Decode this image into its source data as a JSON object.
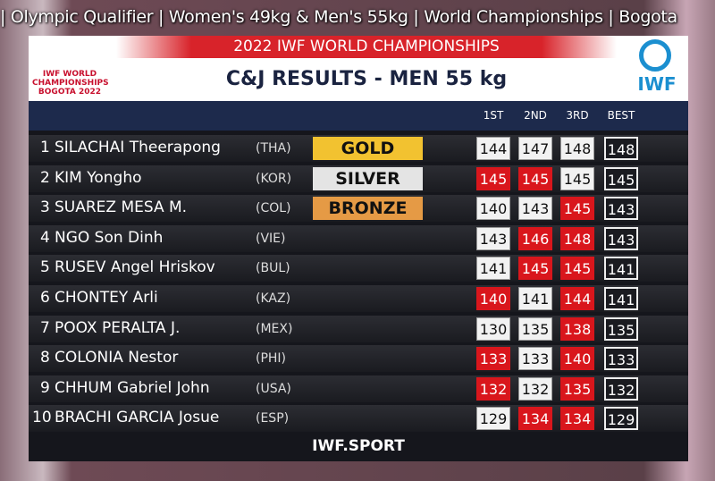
{
  "banner": "| Olympic Qualifier | Women's 49kg & Men's 55kg | World Championships | Bogota",
  "header": {
    "event": "2022 IWF WORLD CHAMPIONSHIPS",
    "title": "C&J RESULTS - MEN 55 kg",
    "logo_left": [
      "IWF WORLD",
      "CHAMPIONSHIPS",
      "BOGOTA 2022"
    ],
    "logo_right": "IWF"
  },
  "columns": [
    "1ST",
    "2ND",
    "3RD",
    "BEST"
  ],
  "table": {
    "rows": [
      {
        "rank": 1,
        "name": "SILACHAI Theerapong",
        "country": "(THA)",
        "medal": {
          "label": "GOLD",
          "color": "#f2c230"
        },
        "attempts": [
          {
            "value": 144,
            "lifted": true
          },
          {
            "value": 147,
            "lifted": true
          },
          {
            "value": 148,
            "lifted": true
          }
        ],
        "best": 148
      },
      {
        "rank": 2,
        "name": "KIM Yongho",
        "country": "(KOR)",
        "medal": {
          "label": "SILVER",
          "color": "#e4e4e4"
        },
        "attempts": [
          {
            "value": 145,
            "lifted": false
          },
          {
            "value": 145,
            "lifted": false
          },
          {
            "value": 145,
            "lifted": true
          }
        ],
        "best": 145
      },
      {
        "rank": 3,
        "name": "SUAREZ MESA M.",
        "country": "(COL)",
        "medal": {
          "label": "BRONZE",
          "color": "#e59a45"
        },
        "attempts": [
          {
            "value": 140,
            "lifted": true
          },
          {
            "value": 143,
            "lifted": true
          },
          {
            "value": 145,
            "lifted": false
          }
        ],
        "best": 143
      },
      {
        "rank": 4,
        "name": "NGO Son Dinh",
        "country": "(VIE)",
        "attempts": [
          {
            "value": 143,
            "lifted": true
          },
          {
            "value": 146,
            "lifted": false
          },
          {
            "value": 148,
            "lifted": false
          }
        ],
        "best": 143
      },
      {
        "rank": 5,
        "name": "RUSEV Angel Hriskov",
        "country": "(BUL)",
        "attempts": [
          {
            "value": 141,
            "lifted": true
          },
          {
            "value": 145,
            "lifted": false
          },
          {
            "value": 145,
            "lifted": false
          }
        ],
        "best": 141
      },
      {
        "rank": 6,
        "name": "CHONTEY Arli",
        "country": "(KAZ)",
        "attempts": [
          {
            "value": 140,
            "lifted": false
          },
          {
            "value": 141,
            "lifted": true
          },
          {
            "value": 144,
            "lifted": false
          }
        ],
        "best": 141
      },
      {
        "rank": 7,
        "name": "POOX PERALTA J.",
        "country": "(MEX)",
        "attempts": [
          {
            "value": 130,
            "lifted": true
          },
          {
            "value": 135,
            "lifted": true
          },
          {
            "value": 138,
            "lifted": false
          }
        ],
        "best": 135
      },
      {
        "rank": 8,
        "name": "COLONIA Nestor",
        "country": "(PHI)",
        "attempts": [
          {
            "value": 133,
            "lifted": false
          },
          {
            "value": 133,
            "lifted": true
          },
          {
            "value": 140,
            "lifted": false
          }
        ],
        "best": 133
      },
      {
        "rank": 9,
        "name": "CHHUM Gabriel John",
        "country": "(USA)",
        "attempts": [
          {
            "value": 132,
            "lifted": false
          },
          {
            "value": 132,
            "lifted": true
          },
          {
            "value": 135,
            "lifted": false
          }
        ],
        "best": 132
      },
      {
        "rank": 10,
        "name": "BRACHI GARCIA Josue",
        "country": "(ESP)",
        "attempts": [
          {
            "value": 129,
            "lifted": true
          },
          {
            "value": 134,
            "lifted": false
          },
          {
            "value": 134,
            "lifted": false
          }
        ],
        "best": 129
      }
    ]
  },
  "footer": "IWF.SPORT"
}
